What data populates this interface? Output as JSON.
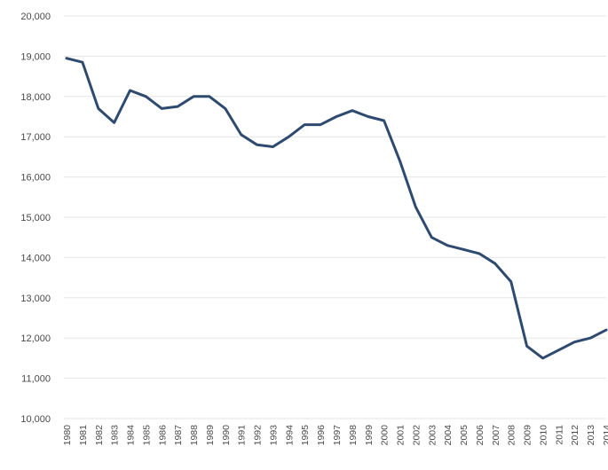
{
  "chart_data": {
    "type": "line",
    "title": "",
    "xlabel": "",
    "ylabel": "",
    "ylim": [
      10000,
      20000
    ],
    "y_ticks": [
      10000,
      11000,
      12000,
      13000,
      14000,
      15000,
      16000,
      17000,
      18000,
      19000,
      20000
    ],
    "y_tick_labels": [
      "10,000",
      "11,000",
      "12,000",
      "13,000",
      "14,000",
      "15,000",
      "16,000",
      "17,000",
      "18,000",
      "19,000",
      "20,000"
    ],
    "grid": true,
    "legend": "none",
    "line_color": "#2e4a6f",
    "grid_color": "#e6e6e6",
    "x": [
      "1980",
      "1981",
      "1982",
      "1983",
      "1984",
      "1985",
      "1986",
      "1987",
      "1988",
      "1989",
      "1990",
      "1991",
      "1992",
      "1993",
      "1994",
      "1995",
      "1996",
      "1997",
      "1998",
      "1999",
      "2000",
      "2001",
      "2002",
      "2003",
      "2004",
      "2005",
      "2006",
      "2007",
      "2008",
      "2009",
      "2010",
      "2011",
      "2012",
      "2013",
      "2014"
    ],
    "series": [
      {
        "values": [
          18950,
          18850,
          17700,
          17350,
          18150,
          18000,
          17700,
          17750,
          18000,
          18000,
          17700,
          17050,
          16800,
          16750,
          17000,
          17300,
          17300,
          17500,
          17650,
          17500,
          17400,
          16400,
          15250,
          14500,
          14300,
          14200,
          14100,
          13850,
          13400,
          11800,
          11500,
          11700,
          11900,
          12000,
          12200
        ]
      }
    ]
  }
}
